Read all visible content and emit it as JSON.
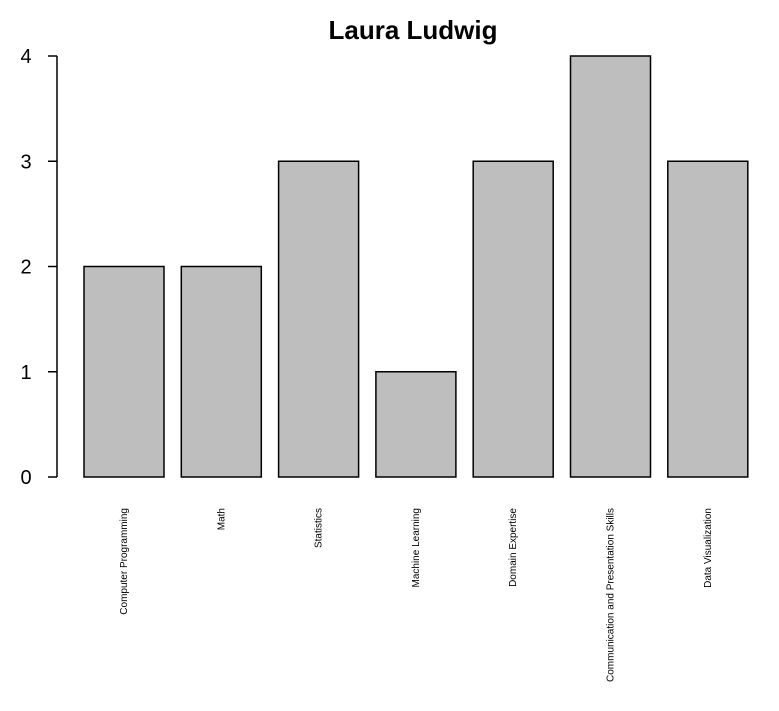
{
  "chart_data": {
    "type": "bar",
    "title": "Laura Ludwig",
    "categories": [
      "Computer Programming",
      "Math",
      "Statistics",
      "Machine Learning",
      "Domain Expertise",
      "Communication and Presentation Skills",
      "Data Visualization"
    ],
    "values": [
      2,
      2,
      3,
      1,
      3,
      4,
      3
    ],
    "yticks": [
      0,
      1,
      2,
      3,
      4
    ],
    "ylim": [
      0,
      4
    ],
    "xlabel": "",
    "ylabel": "",
    "grid": false,
    "bar_color": "#bebebe",
    "border_color": "#000000"
  }
}
